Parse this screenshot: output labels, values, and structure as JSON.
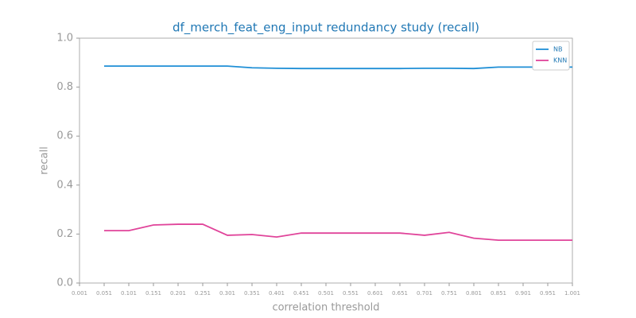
{
  "chart_data": {
    "type": "line",
    "title": "df_merch_feat_eng_input redundancy study (recall)",
    "xlabel": "correlation threshold",
    "ylabel": "recall",
    "x": [
      0.051,
      0.101,
      0.151,
      0.201,
      0.251,
      0.301,
      0.351,
      0.401,
      0.451,
      0.501,
      0.551,
      0.601,
      0.651,
      0.701,
      0.751,
      0.801,
      0.851,
      0.901,
      0.951,
      1.001
    ],
    "series": [
      {
        "name": "NB",
        "color": "#1f8fd6",
        "values": [
          0.886,
          0.886,
          0.886,
          0.886,
          0.886,
          0.886,
          0.879,
          0.877,
          0.876,
          0.876,
          0.876,
          0.876,
          0.876,
          0.877,
          0.877,
          0.876,
          0.882,
          0.882,
          0.882,
          0.882
        ]
      },
      {
        "name": "KNN",
        "color": "#e0449a",
        "values": [
          0.214,
          0.214,
          0.237,
          0.24,
          0.24,
          0.195,
          0.198,
          0.188,
          0.204,
          0.204,
          0.204,
          0.204,
          0.204,
          0.195,
          0.207,
          0.183,
          0.175,
          0.175,
          0.175,
          0.175
        ]
      }
    ],
    "xlim": [
      0.001,
      1.001
    ],
    "xticks": [
      0.001,
      0.051,
      0.101,
      0.151,
      0.201,
      0.251,
      0.301,
      0.351,
      0.401,
      0.451,
      0.501,
      0.551,
      0.601,
      0.651,
      0.701,
      0.751,
      0.801,
      0.851,
      0.901,
      0.951,
      1.001
    ],
    "ylim": [
      0,
      1
    ],
    "yticks": [
      {
        "value": 0,
        "label": "0.0"
      },
      {
        "value": 0.2,
        "label": "0.2"
      },
      {
        "value": 0.4,
        "label": "0.4"
      },
      {
        "value": 0.6,
        "label": "0.6"
      },
      {
        "value": 0.8,
        "label": "0.8"
      },
      {
        "value": 1,
        "label": "1.0"
      }
    ],
    "legend": "upper right"
  }
}
